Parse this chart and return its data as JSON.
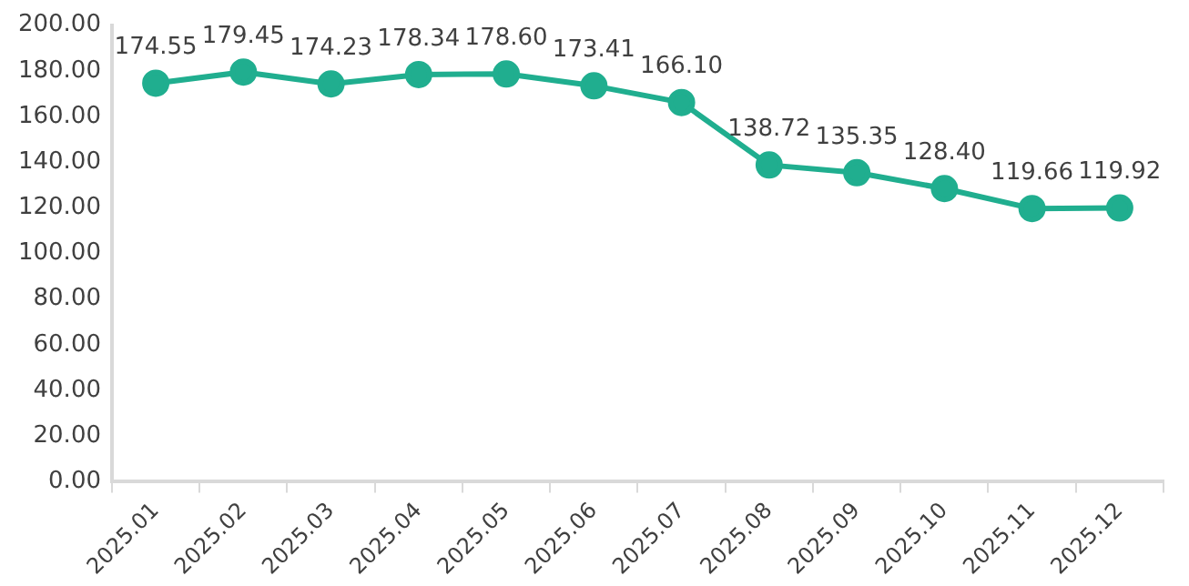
{
  "chart_data": {
    "type": "line",
    "categories": [
      "2025.01",
      "2025.02",
      "2025.03",
      "2025.04",
      "2025.05",
      "2025.06",
      "2025.07",
      "2025.08",
      "2025.09",
      "2025.10",
      "2025.11",
      "2025.12"
    ],
    "series": [
      {
        "color": "#20ae8f",
        "values": [
          174.55,
          179.45,
          174.23,
          178.34,
          178.6,
          173.41,
          166.1,
          138.72,
          135.35,
          128.4,
          119.66,
          119.92
        ]
      }
    ],
    "value_labels": [
      "174.55",
      "179.45",
      "174.23",
      "178.34",
      "178.60",
      "173.41",
      "166.10",
      "138.72",
      "135.35",
      "128.40",
      "119.66",
      "119.92"
    ],
    "ylim": [
      0,
      200
    ],
    "yticks": [
      {
        "value": 0,
        "label": "0.00"
      },
      {
        "value": 20,
        "label": "20.00"
      },
      {
        "value": 40,
        "label": "40.00"
      },
      {
        "value": 60,
        "label": "60.00"
      },
      {
        "value": 80,
        "label": "80.00"
      },
      {
        "value": 100,
        "label": "100.00"
      },
      {
        "value": 120,
        "label": "120.00"
      },
      {
        "value": 140,
        "label": "140.00"
      },
      {
        "value": 160,
        "label": "160.00"
      },
      {
        "value": 180,
        "label": "180.00"
      },
      {
        "value": 200,
        "label": "200.00"
      }
    ],
    "grid": false,
    "legend": false,
    "marker": "circle",
    "line_style": "solid"
  }
}
